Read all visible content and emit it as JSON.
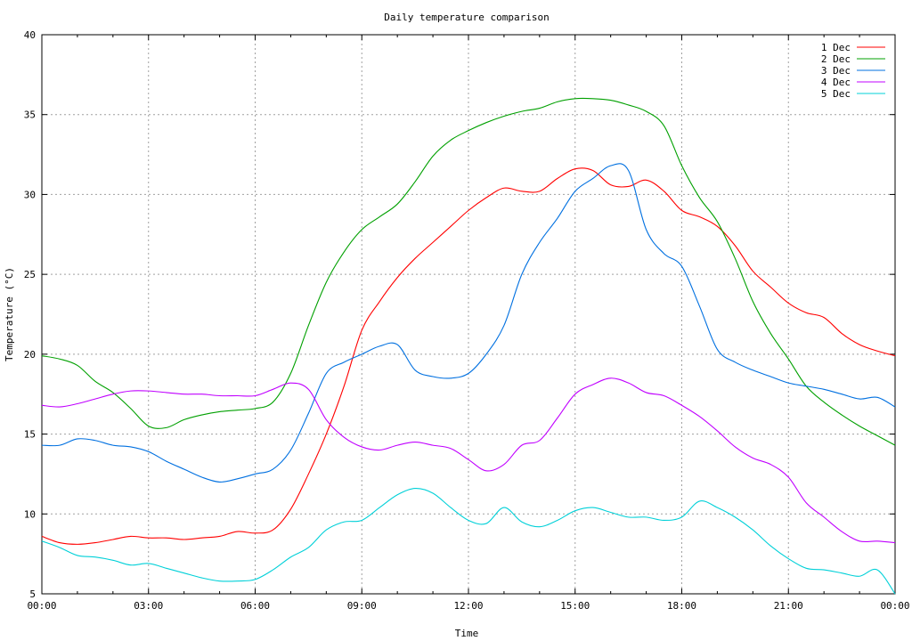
{
  "chart_data": {
    "type": "line",
    "title": "Daily temperature comparison",
    "xlabel": "Time",
    "ylabel": "Temperature (°C)",
    "xlim": [
      0,
      24
    ],
    "ylim": [
      5,
      40
    ],
    "xticks": [
      0,
      3,
      6,
      9,
      12,
      15,
      18,
      21,
      24
    ],
    "xtick_labels": [
      "00:00",
      "03:00",
      "06:00",
      "09:00",
      "12:00",
      "15:00",
      "18:00",
      "21:00",
      "00:00"
    ],
    "yticks": [
      5,
      10,
      15,
      20,
      25,
      30,
      35,
      40
    ],
    "grid": true,
    "legend_position": "top-right",
    "x": [
      0,
      0.5,
      1,
      1.5,
      2,
      2.5,
      3,
      3.5,
      4,
      4.5,
      5,
      5.5,
      6,
      6.5,
      7,
      7.5,
      8,
      8.5,
      9,
      9.5,
      10,
      10.5,
      11,
      11.5,
      12,
      12.5,
      13,
      13.5,
      14,
      14.5,
      15,
      15.5,
      16,
      16.5,
      17,
      17.5,
      18,
      18.5,
      19,
      19.5,
      20,
      20.5,
      21,
      21.5,
      22,
      22.5,
      23,
      23.5,
      24
    ],
    "series": [
      {
        "name": "1 Dec",
        "color": "#ff0000",
        "values": [
          8.6,
          8.2,
          8.1,
          8.2,
          8.4,
          8.6,
          8.5,
          8.5,
          8.4,
          8.5,
          8.6,
          8.9,
          8.8,
          9.0,
          10.3,
          12.5,
          15.0,
          18.0,
          21.5,
          23.3,
          24.8,
          26.0,
          27.0,
          28.0,
          29.0,
          29.8,
          30.4,
          30.2,
          30.2,
          31.0,
          31.6,
          31.5,
          30.6,
          30.5,
          30.9,
          30.2,
          29.0,
          28.6,
          28.0,
          26.8,
          25.2,
          24.2,
          23.2,
          22.6,
          22.3,
          21.3,
          20.6,
          20.2,
          19.9
        ]
      },
      {
        "name": "2 Dec",
        "color": "#00a000",
        "values": [
          19.9,
          19.7,
          19.3,
          18.3,
          17.6,
          16.6,
          15.5,
          15.4,
          15.9,
          16.2,
          16.4,
          16.5,
          16.6,
          17.0,
          18.8,
          21.8,
          24.5,
          26.4,
          27.8,
          28.6,
          29.4,
          30.8,
          32.4,
          33.4,
          34.0,
          34.5,
          34.9,
          35.2,
          35.4,
          35.8,
          36.0,
          36.0,
          35.9,
          35.6,
          35.2,
          34.3,
          31.8,
          29.8,
          28.3,
          26.0,
          23.3,
          21.3,
          19.7,
          18.0,
          17.0,
          16.2,
          15.5,
          14.9,
          14.3
        ]
      },
      {
        "name": "3 Dec",
        "color": "#0070e0",
        "values": [
          14.3,
          14.3,
          14.7,
          14.6,
          14.3,
          14.2,
          13.9,
          13.3,
          12.8,
          12.3,
          12.0,
          12.2,
          12.5,
          12.8,
          14.0,
          16.3,
          18.8,
          19.5,
          20.0,
          20.5,
          20.6,
          19.0,
          18.6,
          18.5,
          18.8,
          20.0,
          21.8,
          25.0,
          27.0,
          28.5,
          30.2,
          31.0,
          31.8,
          31.5,
          27.8,
          26.3,
          25.5,
          23.0,
          20.3,
          19.5,
          19.0,
          18.6,
          18.2,
          18.0,
          17.8,
          17.5,
          17.2,
          17.3,
          16.7
        ]
      },
      {
        "name": "4 Dec",
        "color": "#c000ff",
        "values": [
          16.8,
          16.7,
          16.9,
          17.2,
          17.5,
          17.7,
          17.7,
          17.6,
          17.5,
          17.5,
          17.4,
          17.4,
          17.4,
          17.8,
          18.2,
          17.8,
          15.9,
          14.8,
          14.2,
          14.0,
          14.3,
          14.5,
          14.3,
          14.1,
          13.4,
          12.7,
          13.1,
          14.3,
          14.6,
          16.0,
          17.5,
          18.1,
          18.5,
          18.2,
          17.6,
          17.4,
          16.8,
          16.1,
          15.2,
          14.2,
          13.5,
          13.1,
          12.3,
          10.7,
          9.8,
          8.9,
          8.3,
          8.3,
          8.2
        ]
      },
      {
        "name": "5 Dec",
        "color": "#00d0d8",
        "values": [
          8.3,
          7.9,
          7.4,
          7.3,
          7.1,
          6.8,
          6.9,
          6.6,
          6.3,
          6.0,
          5.8,
          5.8,
          5.9,
          6.5,
          7.3,
          7.9,
          9.0,
          9.5,
          9.6,
          10.4,
          11.2,
          11.6,
          11.3,
          10.4,
          9.6,
          9.4,
          10.4,
          9.5,
          9.2,
          9.6,
          10.2,
          10.4,
          10.1,
          9.8,
          9.8,
          9.6,
          9.8,
          10.8,
          10.4,
          9.8,
          9.0,
          8.0,
          7.2,
          6.6,
          6.5,
          6.3,
          6.1,
          6.5,
          5.0
        ]
      }
    ]
  }
}
